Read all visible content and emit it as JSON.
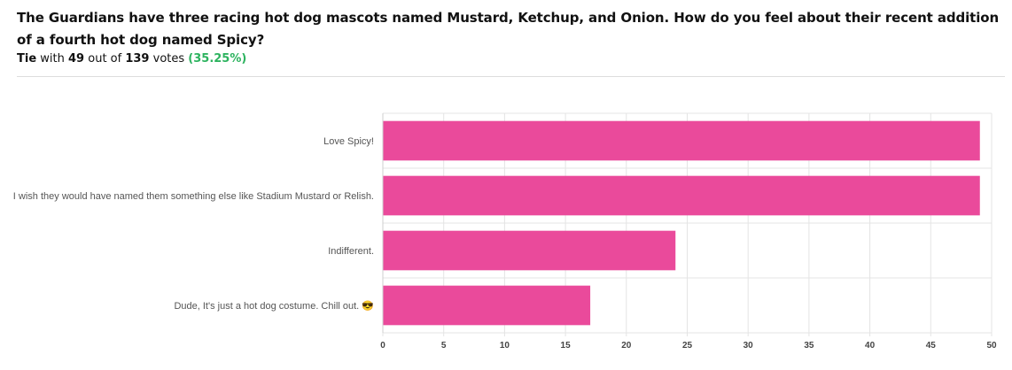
{
  "poll": {
    "question": "The Guardians have three racing hot dog mascots named Mustard, Ketchup, and Onion. How do you feel about their recent addition of a fourth hot dog named Spicy?",
    "result_status": "Tie",
    "result_with": "with",
    "result_votes": "49",
    "result_out_of": "out of",
    "result_total": "139",
    "result_votes_word": "votes",
    "result_percent": "(35.25%)"
  },
  "colors": {
    "bar": "#ea4a9b",
    "grid": "#e4e4e4",
    "percent": "#2db35f"
  },
  "chart_data": {
    "type": "bar",
    "orientation": "horizontal",
    "categories": [
      "Love Spicy!",
      "I wish they would have named them something else like Stadium Mustard or Relish.",
      "Indifferent.",
      "Dude, It's just a hot dog costume. Chill out. 😎"
    ],
    "values": [
      49,
      49,
      24,
      17
    ],
    "xlim": [
      0,
      50
    ],
    "xticks": [
      "0",
      "5",
      "10",
      "15",
      "20",
      "25",
      "30",
      "35",
      "40",
      "45",
      "50"
    ],
    "grid": true,
    "legend": "none"
  }
}
